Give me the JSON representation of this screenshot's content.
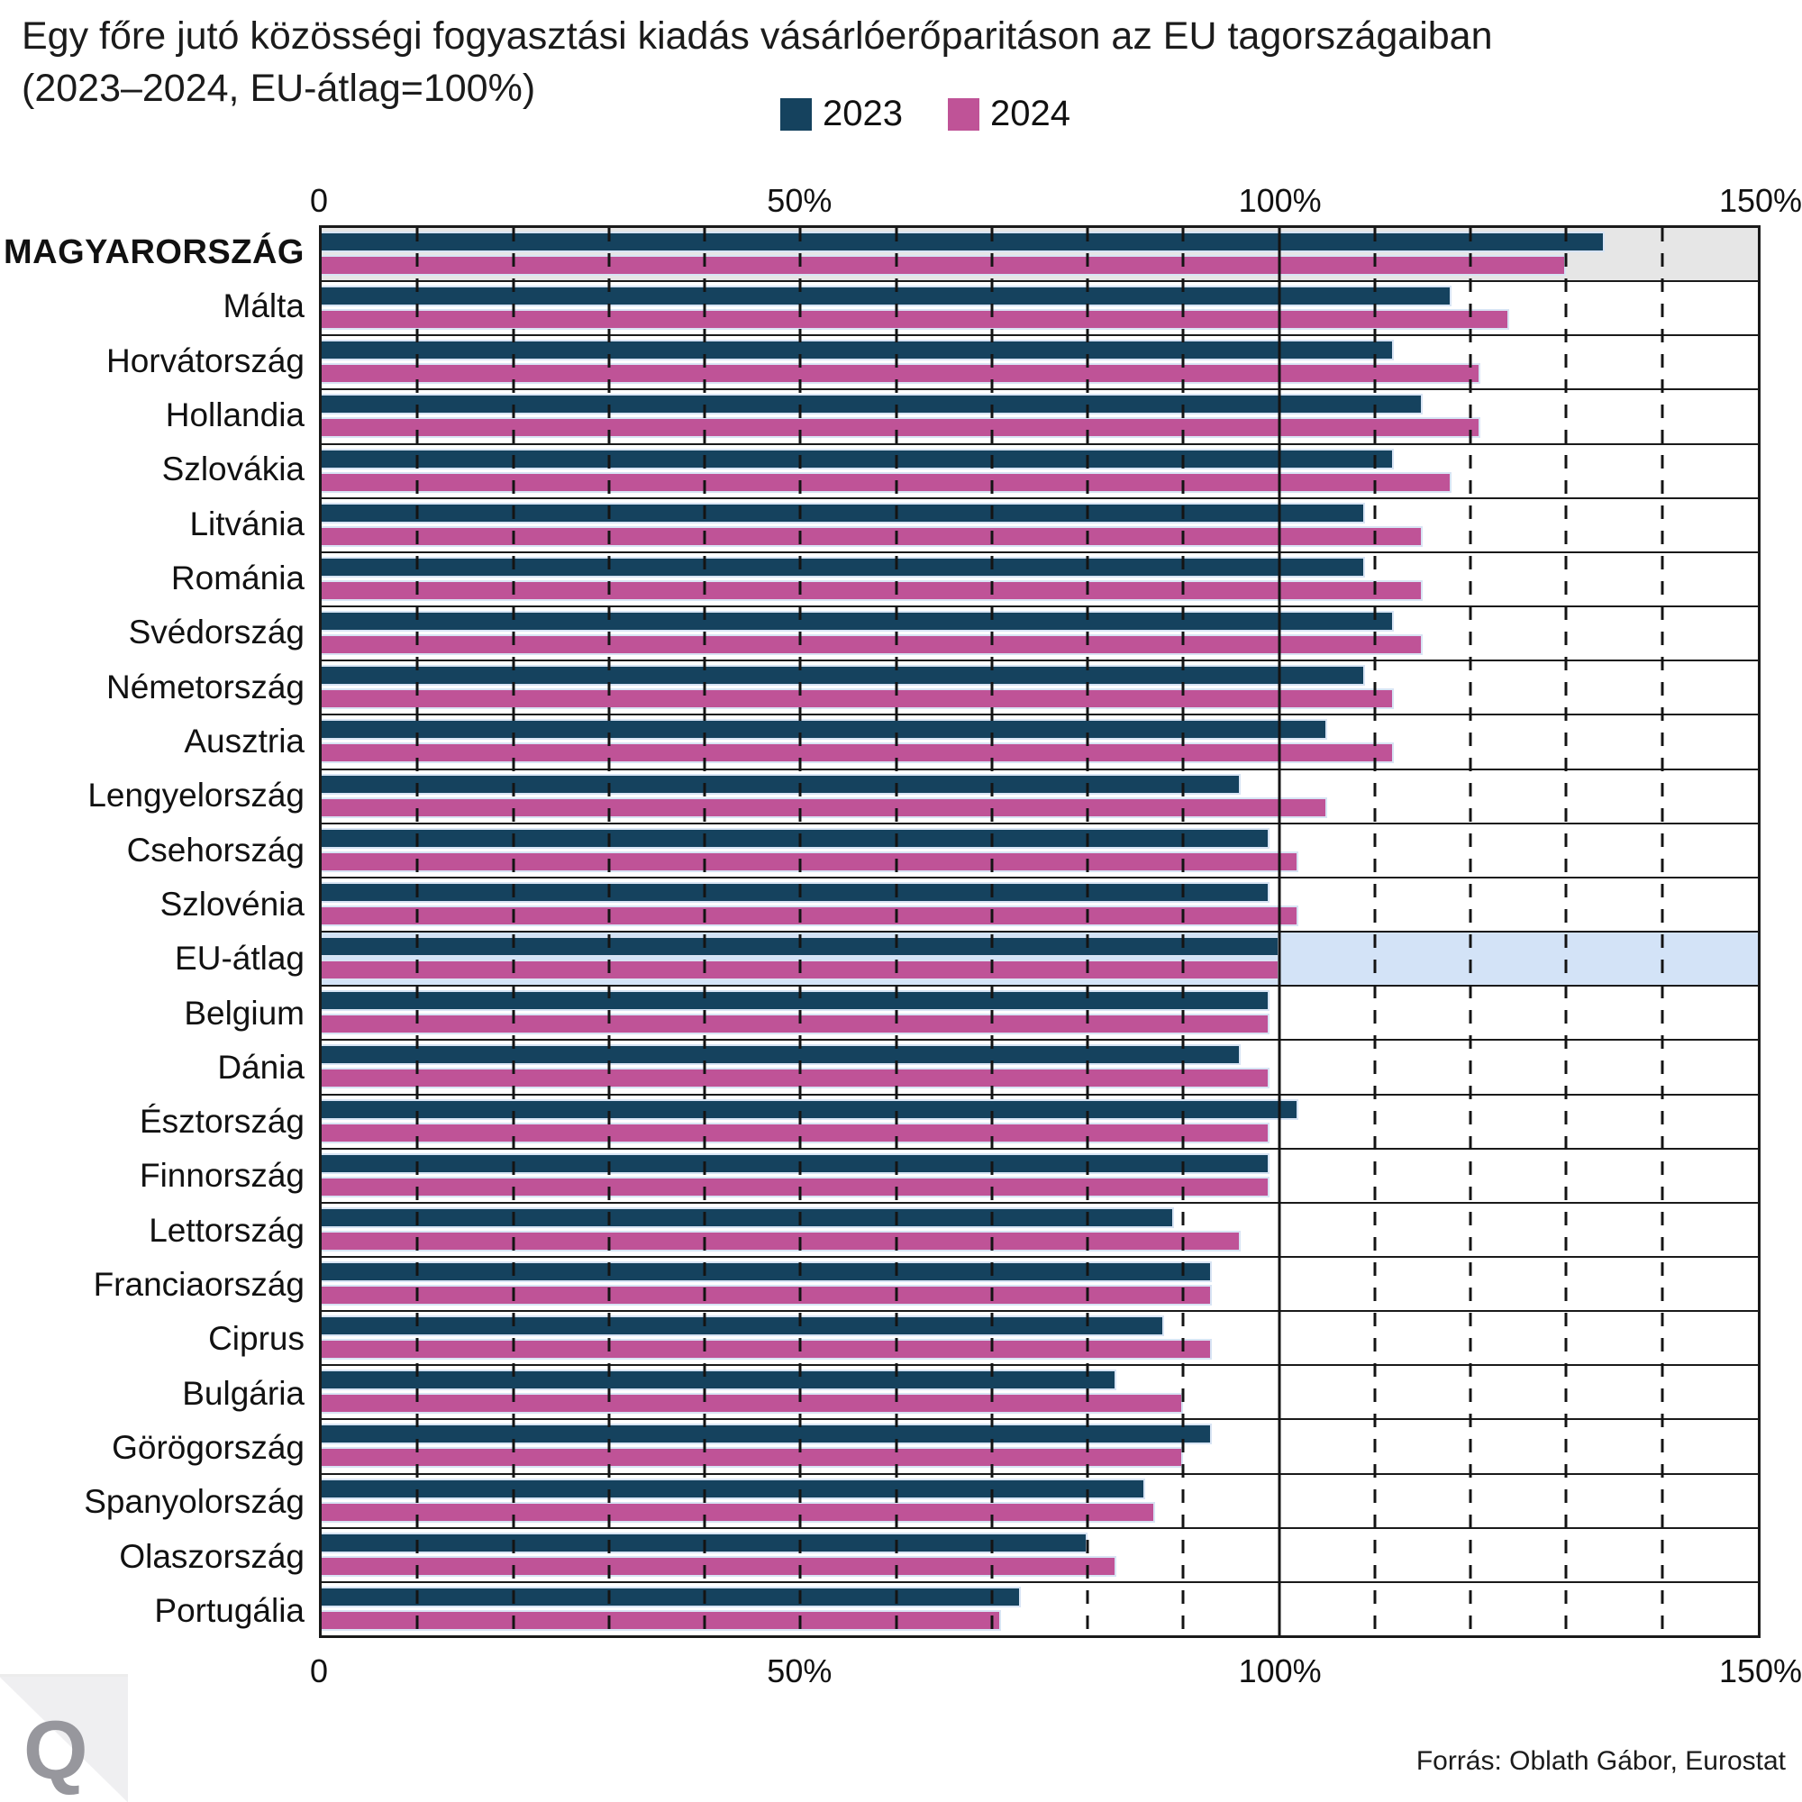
{
  "title": {
    "line1": "Egy főre jutó közösségi fogyasztási kiadás vásárlóerőparitáson az EU tagországaiban",
    "line2": "(2023–2024, EU-átlag=100%)"
  },
  "footer": {
    "source": "Forrás: Oblath Gábor, Eurostat",
    "logo_letter": "Q"
  },
  "colors": {
    "series_2023": "#15425e",
    "series_2024": "#bf5397",
    "highlight_gray": "#e6e6e6",
    "highlight_blue": "#d3e3f7",
    "grid": "#1a1a1a",
    "bar_outline": "#d8e4f4"
  },
  "chart_data": {
    "type": "bar",
    "orientation": "horizontal",
    "title": "Egy főre jutó közösségi fogyasztási kiadás vásárlóerőparitáson az EU tagországaiban",
    "subtitle": "(2023–2024, EU-átlag=100%)",
    "xlabel": "",
    "ylabel": "",
    "xlim": [
      0,
      150
    ],
    "x_ticks": [
      {
        "value": 0,
        "label": "0"
      },
      {
        "value": 50,
        "label": "50%"
      },
      {
        "value": 100,
        "label": "100%"
      },
      {
        "value": 150,
        "label": "150%"
      }
    ],
    "gridlines": {
      "dashed_every": 10,
      "solid_at": 100,
      "drawn_over_bars": true
    },
    "legend_position": "top-center",
    "categories": [
      "MAGYARORSZÁG",
      "Málta",
      "Horvátország",
      "Hollandia",
      "Szlovákia",
      "Litvánia",
      "Románia",
      "Svédország",
      "Németország",
      "Ausztria",
      "Lengyelország",
      "Csehország",
      "Szlovénia",
      "EU-átlag",
      "Belgium",
      "Dánia",
      "Észtország",
      "Finnország",
      "Lettország",
      "Franciaország",
      "Ciprus",
      "Bulgária",
      "Görögország",
      "Spanyolország",
      "Olaszország",
      "Portugália"
    ],
    "series": [
      {
        "name": "2023",
        "color": "#15425e",
        "values": [
          134,
          118,
          112,
          115,
          112,
          109,
          109,
          112,
          109,
          105,
          96,
          99,
          99,
          100,
          99,
          96,
          102,
          99,
          89,
          93,
          88,
          83,
          93,
          86,
          80,
          73
        ]
      },
      {
        "name": "2024",
        "color": "#bf5397",
        "values": [
          130,
          124,
          121,
          121,
          118,
          115,
          115,
          115,
          112,
          112,
          105,
          102,
          102,
          100,
          99,
          99,
          99,
          99,
          96,
          93,
          93,
          90,
          90,
          87,
          83,
          71
        ]
      }
    ],
    "highlighted_rows": [
      {
        "category": "MAGYARORSZÁG",
        "background": "#e6e6e6",
        "label_bold": true
      },
      {
        "category": "EU-átlag",
        "background": "#d3e3f7",
        "label_bold": false
      }
    ],
    "source": "Forrás: Oblath Gábor, Eurostat"
  }
}
